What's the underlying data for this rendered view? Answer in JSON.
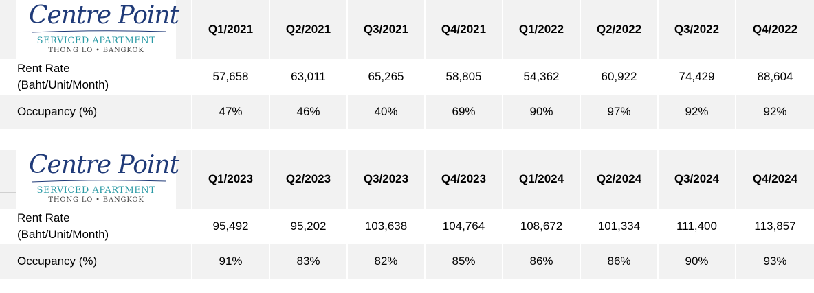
{
  "logo": {
    "name": "Centre Point",
    "tagline": "SERVICED APARTMENT",
    "location": "THONG LO • BANGKOK",
    "colors": {
      "script": "#1f3a78",
      "tagline": "#2a9aa5"
    }
  },
  "labels": {
    "rent": [
      "Rent Rate",
      "(Baht/Unit/Month)"
    ],
    "occupancy": "Occupancy (%)"
  },
  "tables": [
    {
      "quarters": [
        "Q1/2021",
        "Q2/2021",
        "Q3/2021",
        "Q4/2021",
        "Q1/2022",
        "Q2/2022",
        "Q3/2022",
        "Q4/2022"
      ],
      "rent": [
        "57,658",
        "63,011",
        "65,265",
        "58,805",
        "54,362",
        "60,922",
        "74,429",
        "88,604"
      ],
      "occupancy": [
        "47%",
        "46%",
        "40%",
        "69%",
        "90%",
        "97%",
        "92%",
        "92%"
      ]
    },
    {
      "quarters": [
        "Q1/2023",
        "Q2/2023",
        "Q3/2023",
        "Q4/2023",
        "Q1/2024",
        "Q2/2024",
        "Q3/2024",
        "Q4/2024"
      ],
      "rent": [
        "95,492",
        "95,202",
        "103,638",
        "104,764",
        "108,672",
        "101,334",
        "111,400",
        "113,857"
      ],
      "occupancy": [
        "91%",
        "83%",
        "82%",
        "85%",
        "86%",
        "86%",
        "90%",
        "93%"
      ]
    }
  ]
}
